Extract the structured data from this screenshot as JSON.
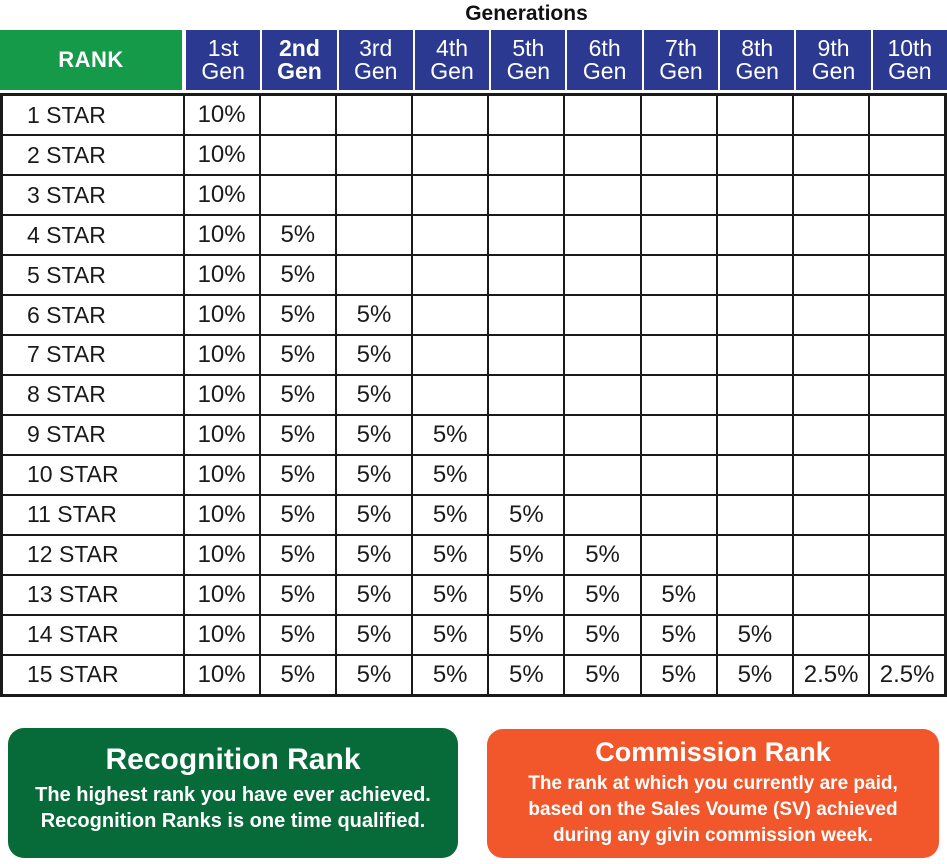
{
  "title": "Generations",
  "colors": {
    "rank_header_green": "#149A49",
    "gen_header_navy": "#2B3990",
    "recognition_card_green": "#076B39",
    "commission_card_orange": "#F1572B",
    "table_border": "#1a1a1a",
    "header_text": "#FFFFFF"
  },
  "table": {
    "rank_header": "RANK",
    "gen_headers": [
      {
        "line1": "1st",
        "line2": "Gen",
        "bold": false
      },
      {
        "line1": "2nd",
        "line2": "Gen",
        "bold": true
      },
      {
        "line1": "3rd",
        "line2": "Gen",
        "bold": false
      },
      {
        "line1": "4th",
        "line2": "Gen",
        "bold": false
      },
      {
        "line1": "5th",
        "line2": "Gen",
        "bold": false
      },
      {
        "line1": "6th",
        "line2": "Gen",
        "bold": false
      },
      {
        "line1": "7th",
        "line2": "Gen",
        "bold": false
      },
      {
        "line1": "8th",
        "line2": "Gen",
        "bold": false
      },
      {
        "line1": "9th",
        "line2": "Gen",
        "bold": false
      },
      {
        "line1": "10th",
        "line2": "Gen",
        "bold": false
      }
    ]
  },
  "chart_data": {
    "type": "table",
    "title": "Generations",
    "columns": [
      "RANK",
      "1st Gen",
      "2nd Gen",
      "3rd Gen",
      "4th Gen",
      "5th Gen",
      "6th Gen",
      "7th Gen",
      "8th Gen",
      "9th Gen",
      "10th Gen"
    ],
    "rows": [
      [
        "1 STAR",
        "10%",
        "",
        "",
        "",
        "",
        "",
        "",
        "",
        "",
        ""
      ],
      [
        "2 STAR",
        "10%",
        "",
        "",
        "",
        "",
        "",
        "",
        "",
        "",
        ""
      ],
      [
        "3 STAR",
        "10%",
        "",
        "",
        "",
        "",
        "",
        "",
        "",
        "",
        ""
      ],
      [
        "4 STAR",
        "10%",
        "5%",
        "",
        "",
        "",
        "",
        "",
        "",
        "",
        ""
      ],
      [
        "5 STAR",
        "10%",
        "5%",
        "",
        "",
        "",
        "",
        "",
        "",
        "",
        ""
      ],
      [
        "6 STAR",
        "10%",
        "5%",
        "5%",
        "",
        "",
        "",
        "",
        "",
        "",
        ""
      ],
      [
        "7 STAR",
        "10%",
        "5%",
        "5%",
        "",
        "",
        "",
        "",
        "",
        "",
        ""
      ],
      [
        "8 STAR",
        "10%",
        "5%",
        "5%",
        "",
        "",
        "",
        "",
        "",
        "",
        ""
      ],
      [
        "9 STAR",
        "10%",
        "5%",
        "5%",
        "5%",
        "",
        "",
        "",
        "",
        "",
        ""
      ],
      [
        "10 STAR",
        "10%",
        "5%",
        "5%",
        "5%",
        "",
        "",
        "",
        "",
        "",
        ""
      ],
      [
        "11 STAR",
        "10%",
        "5%",
        "5%",
        "5%",
        "5%",
        "",
        "",
        "",
        "",
        ""
      ],
      [
        "12 STAR",
        "10%",
        "5%",
        "5%",
        "5%",
        "5%",
        "5%",
        "",
        "",
        "",
        ""
      ],
      [
        "13 STAR",
        "10%",
        "5%",
        "5%",
        "5%",
        "5%",
        "5%",
        "5%",
        "",
        "",
        ""
      ],
      [
        "14 STAR",
        "10%",
        "5%",
        "5%",
        "5%",
        "5%",
        "5%",
        "5%",
        "5%",
        "",
        ""
      ],
      [
        "15 STAR",
        "10%",
        "5%",
        "5%",
        "5%",
        "5%",
        "5%",
        "5%",
        "5%",
        "2.5%",
        "2.5%"
      ]
    ]
  },
  "cards": {
    "recognition": {
      "title": "Recognition Rank",
      "lines": [
        "The highest rank you have ever achieved.",
        "Recognition Ranks is one time qualified."
      ]
    },
    "commission": {
      "title": "Commission Rank",
      "lines": [
        "The rank at which you currently are paid,",
        "based on the Sales Voume (SV) achieved",
        "during any givin commission week."
      ]
    }
  }
}
